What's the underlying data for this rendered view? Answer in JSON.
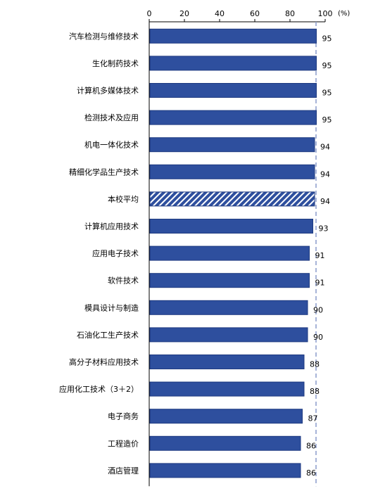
{
  "chart_data": {
    "type": "bar",
    "orientation": "horizontal",
    "unit": "(%)",
    "xlim": [
      0,
      100
    ],
    "xticks": [
      0,
      20,
      40,
      60,
      80,
      100
    ],
    "reference_line": 94,
    "highlight_category": "本校平均",
    "colors": {
      "bar": "#2e4f9e",
      "bar_edge": "#1e3a80",
      "highlight_stripe": "#ffffff",
      "reference_line": "#8a9ccc"
    },
    "categories": [
      "汽车检测与维修技术",
      "生化制药技术",
      "计算机多媒体技术",
      "检测技术及应用",
      "机电一体化技术",
      "精细化学品生产技术",
      "本校平均",
      "计算机应用技术",
      "应用电子技术",
      "软件技术",
      "模具设计与制造",
      "石油化工生产技术",
      "高分子材料应用技术",
      "应用化工技术（3＋2）",
      "电子商务",
      "工程造价",
      "酒店管理"
    ],
    "values": [
      95,
      95,
      95,
      95,
      94,
      94,
      94,
      93,
      91,
      91,
      90,
      90,
      88,
      88,
      87,
      86,
      86
    ]
  }
}
